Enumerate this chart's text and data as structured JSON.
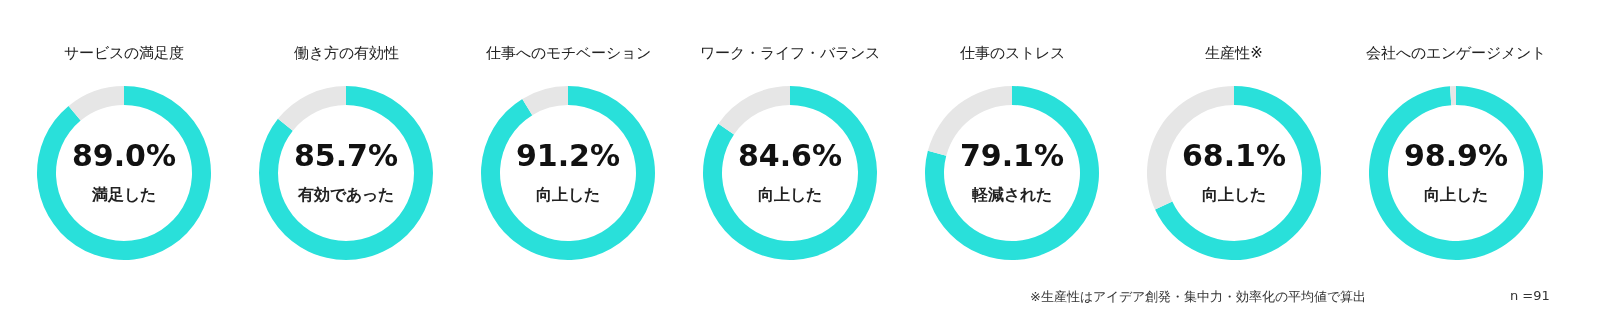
{
  "chart_data": [
    {
      "type": "donut",
      "title": "サービスの満足度",
      "categories": [
        "満足した",
        null
      ],
      "values": [
        89.0,
        11.0
      ],
      "value_labels": [
        "89.0%",
        null
      ],
      "colors": [
        "#29e0da",
        "#e6e6e6"
      ]
    },
    {
      "type": "donut",
      "title": "働き方の有効性",
      "categories": [
        "有効であった",
        null
      ],
      "values": [
        85.7,
        14.3
      ],
      "value_labels": [
        "85.7%",
        null
      ],
      "colors": [
        "#29e0da",
        "#e6e6e6"
      ]
    },
    {
      "type": "donut",
      "title": "仕事へのモチベーション",
      "categories": [
        "向上した",
        null
      ],
      "values": [
        91.2,
        8.8
      ],
      "value_labels": [
        "91.2%",
        null
      ],
      "colors": [
        "#29e0da",
        "#e6e6e6"
      ]
    },
    {
      "type": "donut",
      "title": "ワーク・ライフ・バランス",
      "categories": [
        "向上した",
        null
      ],
      "values": [
        84.6,
        15.4
      ],
      "value_labels": [
        "84.6%",
        null
      ],
      "colors": [
        "#29e0da",
        "#e6e6e6"
      ]
    },
    {
      "type": "donut",
      "title": "仕事のストレス",
      "categories": [
        "軽減された",
        null
      ],
      "values": [
        79.1,
        20.9
      ],
      "value_labels": [
        "79.1%",
        null
      ],
      "colors": [
        "#29e0da",
        "#e6e6e6"
      ]
    },
    {
      "type": "donut",
      "title": "生産性※",
      "categories": [
        "向上した",
        null
      ],
      "values": [
        68.1,
        31.9
      ],
      "value_labels": [
        "68.1%",
        null
      ],
      "colors": [
        "#29e0da",
        "#e6e6e6"
      ]
    },
    {
      "type": "donut",
      "title": "会社へのエンゲージメント",
      "categories": [
        "向上した",
        null
      ],
      "values": [
        98.9,
        1.1
      ],
      "value_labels": [
        "98.9%",
        null
      ],
      "colors": [
        "#29e0da",
        "#e6e6e6"
      ],
      "annotations": [
        "※生産性はアイデア創発・集中力・効率化の平均値で算出",
        "n =91"
      ]
    }
  ]
}
